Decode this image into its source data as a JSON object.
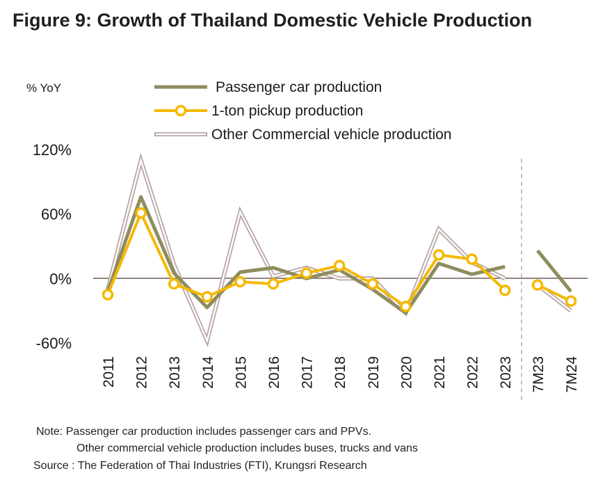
{
  "figure": {
    "title": "Figure 9: Growth of Thailand Domestic Vehicle Production",
    "notes": [
      "Note: Passenger car production includes passenger cars and PPVs.",
      "Other commercial vehicle production includes buses, trucks and vans",
      "Source : The Federation of Thai Industries (FTI), Krungsri Research"
    ]
  },
  "colors": {
    "passenger": "#8f8c5e",
    "pickup": "#f5b800",
    "other": "#b9a7a5",
    "zero_line": "#6b5c5a",
    "divider": "#b9a0a0"
  },
  "chart_data": {
    "type": "line",
    "title": "Figure 9: Growth of Thailand Domestic Vehicle Production",
    "ylabel": "% YoY",
    "xlabel": "",
    "ylim": [
      -60,
      120
    ],
    "yticks": [
      -60,
      0,
      60,
      120
    ],
    "ytick_labels": [
      "-60%",
      "0%",
      "60%",
      "120%"
    ],
    "categories": [
      "2011",
      "2012",
      "2013",
      "2014",
      "2015",
      "2016",
      "2017",
      "2018",
      "2019",
      "2020",
      "2021",
      "2022",
      "2023",
      "7M23",
      "7M24"
    ],
    "annual_count": 13,
    "legend_position": "top",
    "grid": false,
    "series": [
      {
        "name": "Passenger car production",
        "key": "passenger",
        "values": [
          -12,
          76,
          5,
          -27,
          6,
          10,
          0,
          8,
          -10,
          -32,
          14,
          4,
          11,
          26,
          -12
        ]
      },
      {
        "name": "1-ton pickup production",
        "key": "pickup",
        "values": [
          -15,
          61,
          -5,
          -17,
          -3,
          -5,
          5,
          12,
          -5,
          -26,
          22,
          18,
          -11,
          -6,
          -21
        ]
      },
      {
        "name": "Other Commercial vehicle production",
        "key": "other",
        "values": [
          -10,
          110,
          13,
          -58,
          62,
          2,
          10,
          0,
          0,
          -32,
          46,
          15,
          0,
          -6,
          -30
        ]
      }
    ]
  }
}
